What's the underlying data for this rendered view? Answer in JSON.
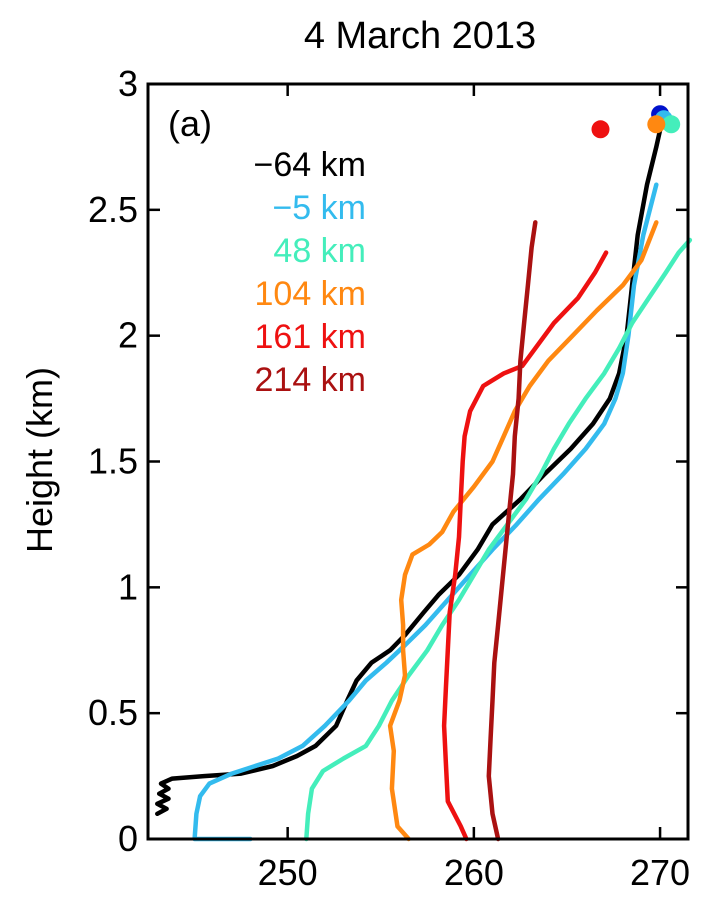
{
  "chart_data": {
    "type": "line",
    "title": "4 March 2013",
    "panel_label": "(a)",
    "xlabel": "",
    "ylabel": "Height (km)",
    "xlim": [
      242.5,
      271.5
    ],
    "ylim": [
      0,
      3
    ],
    "xticks": [
      250,
      260,
      270
    ],
    "yticks": [
      0,
      0.5,
      1,
      1.5,
      2,
      2.5,
      3
    ],
    "ytick_labels": [
      "0",
      "0.5",
      "1",
      "1.5",
      "2",
      "2.5",
      "3"
    ],
    "grid": false,
    "legend_position": "top-left",
    "series": [
      {
        "name": "−64 km",
        "color": "#000000",
        "points": [
          [
            243.0,
            0.1
          ],
          [
            243.5,
            0.12
          ],
          [
            243.0,
            0.14
          ],
          [
            243.6,
            0.16
          ],
          [
            243.1,
            0.18
          ],
          [
            243.6,
            0.2
          ],
          [
            243.2,
            0.22
          ],
          [
            243.8,
            0.24
          ],
          [
            245.5,
            0.25
          ],
          [
            247.5,
            0.26
          ],
          [
            249.2,
            0.29
          ],
          [
            250.5,
            0.33
          ],
          [
            251.5,
            0.37
          ],
          [
            252.6,
            0.45
          ],
          [
            253.2,
            0.55
          ],
          [
            253.7,
            0.63
          ],
          [
            254.5,
            0.7
          ],
          [
            255.5,
            0.75
          ],
          [
            256.3,
            0.81
          ],
          [
            257.3,
            0.9
          ],
          [
            258.1,
            0.97
          ],
          [
            259.2,
            1.05
          ],
          [
            260.2,
            1.15
          ],
          [
            261.0,
            1.25
          ],
          [
            262.5,
            1.35
          ],
          [
            263.8,
            1.45
          ],
          [
            265.2,
            1.55
          ],
          [
            266.4,
            1.65
          ],
          [
            267.3,
            1.75
          ],
          [
            267.8,
            1.85
          ],
          [
            268.2,
            2.0
          ],
          [
            268.5,
            2.2
          ],
          [
            268.8,
            2.4
          ],
          [
            269.3,
            2.6
          ],
          [
            269.8,
            2.75
          ],
          [
            270.1,
            2.85
          ]
        ]
      },
      {
        "name": "−5 km",
        "color": "#33bbee",
        "points": [
          [
            248.0,
            0.0
          ],
          [
            245.0,
            0.0
          ],
          [
            245.1,
            0.1
          ],
          [
            245.3,
            0.17
          ],
          [
            245.8,
            0.22
          ],
          [
            247.0,
            0.26
          ],
          [
            249.5,
            0.32
          ],
          [
            250.8,
            0.37
          ],
          [
            252.0,
            0.45
          ],
          [
            253.3,
            0.55
          ],
          [
            254.2,
            0.63
          ],
          [
            255.3,
            0.7
          ],
          [
            256.3,
            0.77
          ],
          [
            257.4,
            0.85
          ],
          [
            258.6,
            0.95
          ],
          [
            259.8,
            1.05
          ],
          [
            261.0,
            1.15
          ],
          [
            262.3,
            1.25
          ],
          [
            263.5,
            1.35
          ],
          [
            264.8,
            1.45
          ],
          [
            266.0,
            1.55
          ],
          [
            267.0,
            1.65
          ],
          [
            267.6,
            1.75
          ],
          [
            268.0,
            1.85
          ],
          [
            268.3,
            2.0
          ],
          [
            268.6,
            2.2
          ],
          [
            269.1,
            2.4
          ],
          [
            269.8,
            2.6
          ]
        ]
      },
      {
        "name": "48 km",
        "color": "#44eebb",
        "points": [
          [
            251.0,
            0.0
          ],
          [
            251.1,
            0.1
          ],
          [
            251.3,
            0.2
          ],
          [
            251.9,
            0.27
          ],
          [
            253.0,
            0.32
          ],
          [
            254.2,
            0.37
          ],
          [
            254.9,
            0.45
          ],
          [
            255.6,
            0.55
          ],
          [
            256.5,
            0.65
          ],
          [
            257.5,
            0.75
          ],
          [
            258.3,
            0.85
          ],
          [
            259.2,
            0.95
          ],
          [
            260.0,
            1.05
          ],
          [
            260.8,
            1.15
          ],
          [
            261.8,
            1.25
          ],
          [
            262.8,
            1.35
          ],
          [
            263.6,
            1.45
          ],
          [
            264.3,
            1.55
          ],
          [
            265.1,
            1.65
          ],
          [
            266.0,
            1.75
          ],
          [
            267.0,
            1.85
          ],
          [
            267.8,
            1.95
          ],
          [
            268.5,
            2.05
          ],
          [
            269.4,
            2.15
          ],
          [
            270.3,
            2.25
          ],
          [
            271.0,
            2.33
          ],
          [
            271.6,
            2.38
          ]
        ]
      },
      {
        "name": "104 km",
        "color": "#ff8811",
        "points": [
          [
            256.5,
            0.0
          ],
          [
            255.9,
            0.05
          ],
          [
            255.6,
            0.2
          ],
          [
            255.7,
            0.35
          ],
          [
            255.5,
            0.45
          ],
          [
            256.0,
            0.55
          ],
          [
            256.3,
            0.65
          ],
          [
            256.2,
            0.75
          ],
          [
            256.2,
            0.85
          ],
          [
            256.1,
            0.95
          ],
          [
            256.3,
            1.05
          ],
          [
            256.7,
            1.13
          ],
          [
            257.6,
            1.17
          ],
          [
            258.3,
            1.22
          ],
          [
            258.9,
            1.3
          ],
          [
            260.0,
            1.4
          ],
          [
            261.0,
            1.5
          ],
          [
            261.6,
            1.6
          ],
          [
            262.2,
            1.7
          ],
          [
            263.0,
            1.8
          ],
          [
            264.0,
            1.9
          ],
          [
            265.3,
            2.0
          ],
          [
            266.6,
            2.1
          ],
          [
            268.0,
            2.2
          ],
          [
            269.0,
            2.3
          ],
          [
            269.8,
            2.45
          ]
        ]
      },
      {
        "name": "161 km",
        "color": "#ee1111",
        "points": [
          [
            259.6,
            0.0
          ],
          [
            259.3,
            0.05
          ],
          [
            258.6,
            0.15
          ],
          [
            258.5,
            0.3
          ],
          [
            258.4,
            0.45
          ],
          [
            258.5,
            0.6
          ],
          [
            258.6,
            0.75
          ],
          [
            258.7,
            0.9
          ],
          [
            259.0,
            1.05
          ],
          [
            259.2,
            1.2
          ],
          [
            259.3,
            1.35
          ],
          [
            259.4,
            1.5
          ],
          [
            259.5,
            1.6
          ],
          [
            259.8,
            1.7
          ],
          [
            260.5,
            1.8
          ],
          [
            261.6,
            1.85
          ],
          [
            262.6,
            1.88
          ],
          [
            263.3,
            1.95
          ],
          [
            264.3,
            2.05
          ],
          [
            265.6,
            2.15
          ],
          [
            266.5,
            2.25
          ],
          [
            267.1,
            2.33
          ]
        ]
      },
      {
        "name": "214 km",
        "color": "#aa1111",
        "points": [
          [
            261.3,
            0.0
          ],
          [
            261.0,
            0.1
          ],
          [
            260.8,
            0.25
          ],
          [
            260.9,
            0.4
          ],
          [
            261.0,
            0.55
          ],
          [
            261.1,
            0.7
          ],
          [
            261.3,
            0.85
          ],
          [
            261.5,
            1.0
          ],
          [
            261.7,
            1.15
          ],
          [
            261.9,
            1.3
          ],
          [
            262.1,
            1.45
          ],
          [
            262.2,
            1.6
          ],
          [
            262.4,
            1.75
          ],
          [
            262.5,
            1.9
          ],
          [
            262.7,
            2.05
          ],
          [
            262.9,
            2.2
          ],
          [
            263.1,
            2.35
          ],
          [
            263.3,
            2.45
          ]
        ]
      }
    ],
    "markers": [
      {
        "series": "−64 km",
        "x": 270.0,
        "y": 2.88,
        "color": "#0011cc"
      },
      {
        "series": "−5 km",
        "x": 270.2,
        "y": 2.86,
        "color": "#33bbee"
      },
      {
        "series": "48 km",
        "x": 270.6,
        "y": 2.84,
        "color": "#44eebb"
      },
      {
        "series": "104 km",
        "x": 269.8,
        "y": 2.84,
        "color": "#ff8811"
      },
      {
        "series": "161 km",
        "x": 266.8,
        "y": 2.82,
        "color": "#ee1111"
      }
    ]
  }
}
